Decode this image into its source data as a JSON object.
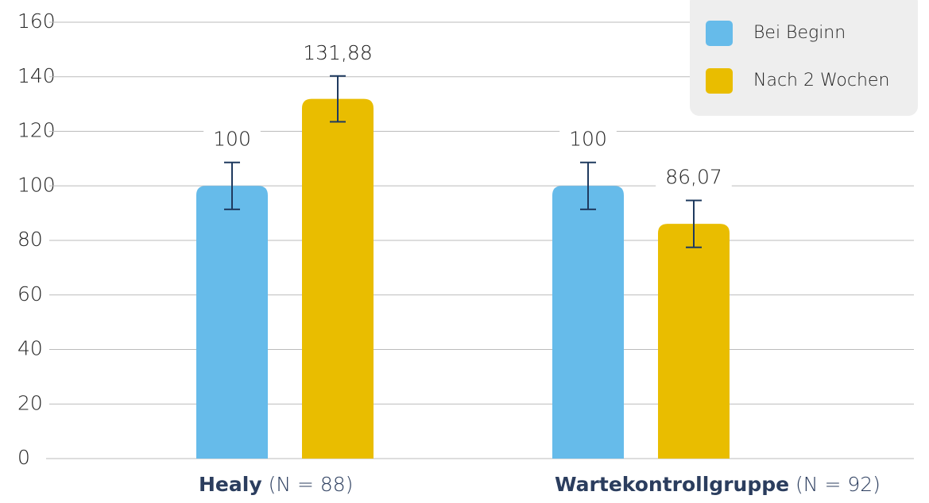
{
  "chart_data": {
    "type": "bar",
    "categories": [
      "Healy",
      "Wartekontrollgruppe"
    ],
    "category_notes": [
      "(N = 88)",
      "(N = 92)"
    ],
    "series": [
      {
        "name": "Bei Beginn",
        "color": "#66bbea",
        "values": [
          100,
          100
        ],
        "value_labels": [
          "100",
          "100"
        ],
        "errors": [
          8.6,
          8.6
        ]
      },
      {
        "name": "Nach 2 Wochen",
        "color": "#e9bd00",
        "values": [
          131.88,
          86.07
        ],
        "value_labels": [
          "131,88",
          "86,07"
        ],
        "errors": [
          8.4,
          8.6
        ]
      }
    ],
    "ylim": [
      0,
      160
    ],
    "yticks": [
      0,
      20,
      40,
      60,
      80,
      100,
      120,
      140,
      160
    ],
    "grid": true,
    "legend": "top-right",
    "error_color": "#1f3a5f"
  }
}
